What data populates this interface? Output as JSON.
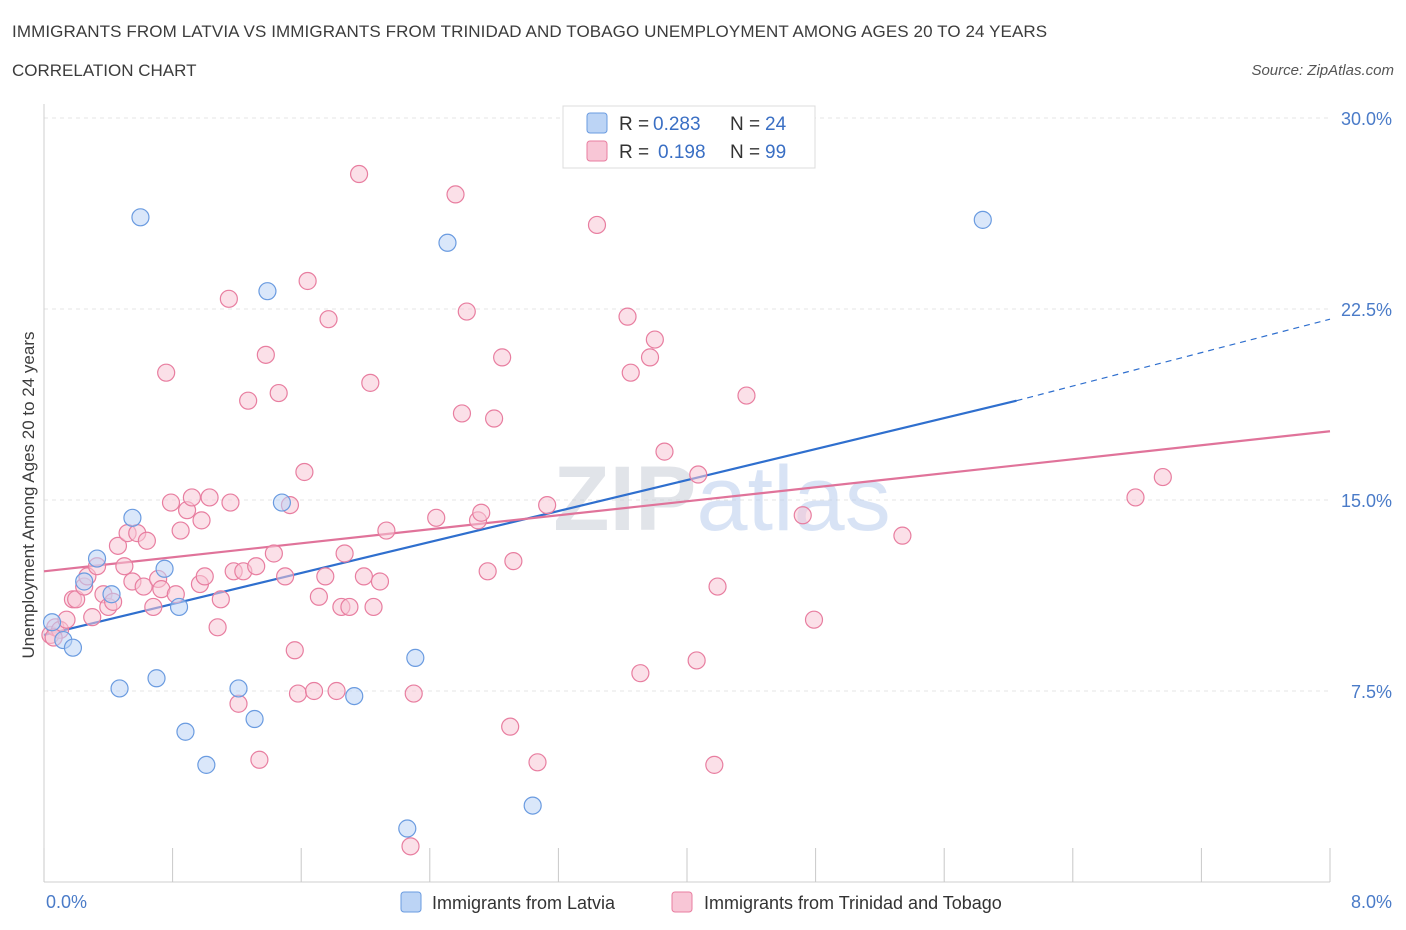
{
  "title": "IMMIGRANTS FROM LATVIA VS IMMIGRANTS FROM TRINIDAD AND TOBAGO UNEMPLOYMENT AMONG AGES 20 TO 24 YEARS",
  "subtitle": "CORRELATION CHART",
  "source": "Source: ZipAtlas.com",
  "watermark": "ZIPatlas",
  "legend": {
    "latvia": {
      "r_label": "R =",
      "r_value": "0.283",
      "n_label": "N =",
      "n_value": "24"
    },
    "tt": {
      "r_label": "R =",
      "r_value": "0.198",
      "n_label": "N =",
      "n_value": "99"
    }
  },
  "bottom_legend": {
    "latvia": "Immigrants from Latvia",
    "tt": "Immigrants from Trinidad and Tobago"
  },
  "chart_data": {
    "type": "scatter",
    "ylabel": "Unemployment Among Ages 20 to 24 years",
    "xlim": [
      0,
      8
    ],
    "ylim": [
      0,
      30
    ],
    "x_tick_labels": [
      "0.0%",
      "8.0%"
    ],
    "y_ticks": [
      7.5,
      15.0,
      22.5,
      30.0
    ],
    "y_tick_labels": [
      "7.5%",
      "15.0%",
      "22.5%",
      "30.0%"
    ],
    "grid": true,
    "legend_position": "top-center",
    "colors": {
      "latvia": "#6a9be0",
      "latvia_fill": "#bcd4f5",
      "tt": "#e87ea0",
      "tt_fill": "#f8c6d6",
      "latvia_line": "#2f6fce",
      "tt_line": "#e0739a"
    },
    "series": [
      {
        "name": "Immigrants from Latvia",
        "points": [
          [
            0.05,
            10.2
          ],
          [
            0.12,
            9.5
          ],
          [
            0.18,
            9.2
          ],
          [
            0.25,
            11.8
          ],
          [
            0.33,
            12.7
          ],
          [
            0.42,
            11.3
          ],
          [
            0.47,
            7.6
          ],
          [
            0.55,
            14.3
          ],
          [
            0.6,
            26.1
          ],
          [
            0.7,
            8.0
          ],
          [
            0.75,
            12.3
          ],
          [
            0.84,
            10.8
          ],
          [
            0.88,
            5.9
          ],
          [
            1.01,
            4.6
          ],
          [
            1.21,
            7.6
          ],
          [
            1.31,
            6.4
          ],
          [
            1.39,
            23.2
          ],
          [
            1.48,
            14.9
          ],
          [
            1.93,
            7.3
          ],
          [
            2.26,
            2.1
          ],
          [
            2.31,
            8.8
          ],
          [
            2.51,
            25.1
          ],
          [
            3.04,
            3.0
          ],
          [
            5.84,
            26.0
          ]
        ],
        "trend": {
          "x0": 0.0,
          "y0": 9.7,
          "x1": 6.05,
          "y1": 18.9,
          "dash_x1": 8.0,
          "dash_y1": 22.1
        }
      },
      {
        "name": "Immigrants from Trinidad and Tobago",
        "points": [
          [
            0.04,
            9.7
          ],
          [
            0.07,
            10.0
          ],
          [
            0.1,
            9.9
          ],
          [
            0.14,
            10.3
          ],
          [
            0.18,
            11.1
          ],
          [
            0.2,
            11.1
          ],
          [
            0.25,
            11.6
          ],
          [
            0.27,
            12.0
          ],
          [
            0.3,
            10.4
          ],
          [
            0.33,
            12.4
          ],
          [
            0.37,
            11.3
          ],
          [
            0.4,
            10.8
          ],
          [
            0.43,
            11.0
          ],
          [
            0.46,
            13.2
          ],
          [
            0.5,
            12.4
          ],
          [
            0.52,
            13.7
          ],
          [
            0.55,
            11.8
          ],
          [
            0.58,
            13.7
          ],
          [
            0.62,
            11.6
          ],
          [
            0.64,
            13.4
          ],
          [
            0.68,
            10.8
          ],
          [
            0.71,
            11.9
          ],
          [
            0.73,
            11.5
          ],
          [
            0.76,
            20.0
          ],
          [
            0.79,
            14.9
          ],
          [
            0.82,
            11.3
          ],
          [
            0.85,
            13.8
          ],
          [
            0.89,
            14.6
          ],
          [
            0.92,
            15.1
          ],
          [
            0.97,
            11.7
          ],
          [
            0.98,
            14.2
          ],
          [
            1.0,
            12.0
          ],
          [
            1.03,
            15.1
          ],
          [
            1.08,
            10.0
          ],
          [
            1.1,
            11.1
          ],
          [
            1.15,
            22.9
          ],
          [
            1.16,
            14.9
          ],
          [
            1.18,
            12.2
          ],
          [
            1.21,
            7.0
          ],
          [
            1.24,
            12.2
          ],
          [
            1.27,
            18.9
          ],
          [
            1.32,
            12.4
          ],
          [
            1.34,
            4.8
          ],
          [
            1.38,
            20.7
          ],
          [
            1.43,
            12.9
          ],
          [
            1.46,
            19.2
          ],
          [
            1.5,
            12.0
          ],
          [
            1.53,
            14.8
          ],
          [
            1.56,
            9.1
          ],
          [
            1.58,
            7.4
          ],
          [
            1.62,
            16.1
          ],
          [
            1.64,
            23.6
          ],
          [
            1.68,
            7.5
          ],
          [
            1.71,
            11.2
          ],
          [
            1.75,
            12.0
          ],
          [
            1.77,
            22.1
          ],
          [
            1.82,
            7.5
          ],
          [
            1.85,
            10.8
          ],
          [
            1.87,
            12.9
          ],
          [
            1.9,
            10.8
          ],
          [
            1.96,
            27.8
          ],
          [
            1.99,
            12.0
          ],
          [
            2.03,
            19.6
          ],
          [
            2.05,
            10.8
          ],
          [
            2.09,
            11.8
          ],
          [
            2.13,
            13.8
          ],
          [
            2.28,
            1.4
          ],
          [
            2.3,
            7.4
          ],
          [
            2.44,
            14.3
          ],
          [
            2.56,
            27.0
          ],
          [
            2.6,
            18.4
          ],
          [
            2.63,
            22.4
          ],
          [
            2.7,
            14.2
          ],
          [
            2.72,
            14.5
          ],
          [
            2.76,
            12.2
          ],
          [
            2.8,
            18.2
          ],
          [
            2.85,
            20.6
          ],
          [
            2.9,
            6.1
          ],
          [
            2.92,
            12.6
          ],
          [
            3.07,
            4.7
          ],
          [
            3.13,
            14.8
          ],
          [
            3.44,
            25.8
          ],
          [
            3.63,
            22.2
          ],
          [
            3.65,
            20.0
          ],
          [
            3.71,
            8.2
          ],
          [
            3.77,
            20.6
          ],
          [
            3.8,
            21.3
          ],
          [
            3.86,
            16.9
          ],
          [
            4.06,
            8.7
          ],
          [
            4.07,
            16.0
          ],
          [
            4.17,
            4.6
          ],
          [
            4.19,
            11.6
          ],
          [
            4.37,
            19.1
          ],
          [
            4.72,
            14.4
          ],
          [
            4.79,
            10.3
          ],
          [
            5.34,
            13.6
          ],
          [
            6.79,
            15.1
          ],
          [
            6.96,
            15.9
          ],
          [
            0.06,
            9.6
          ]
        ],
        "trend": {
          "x0": 0.0,
          "y0": 12.2,
          "x1": 8.0,
          "y1": 17.7
        }
      }
    ]
  }
}
